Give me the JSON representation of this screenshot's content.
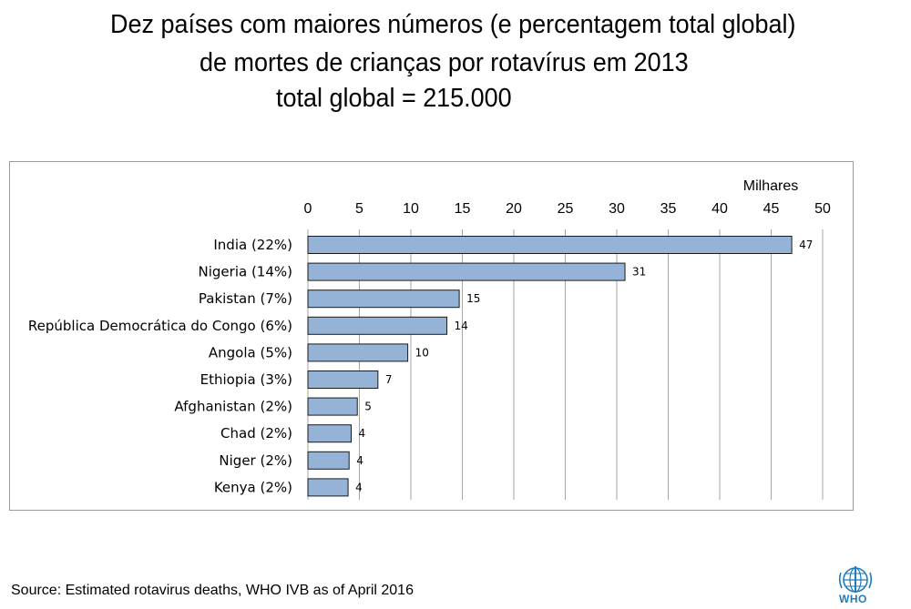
{
  "title": {
    "line1": "Dez países com maiores números (e percentagem total global)",
    "line2": "de mortes de crianças por rotavírus em 2013",
    "line3": "total global = 215.000"
  },
  "source": "Source: Estimated rotavirus  deaths, WHO IVB as of April 2016",
  "logo": {
    "text": "WHO",
    "icon": "who-emblem-icon",
    "color": "#1f7bbf"
  },
  "chart_data": {
    "type": "bar",
    "orientation": "horizontal",
    "axis_title": "Milhares",
    "xlim": [
      0,
      50
    ],
    "ticks": [
      0,
      5,
      10,
      15,
      20,
      25,
      30,
      35,
      40,
      45,
      50
    ],
    "axis_position": "top",
    "grid": true,
    "bar_color": "#95b3d7",
    "categories": [
      "India (22%)",
      "Nigeria (14%)",
      "Pakistan (7%)",
      "República Democrática do Congo (6%)",
      "Angola (5%)",
      "Ethiopia (3%)",
      "Afghanistan (2%)",
      "Chad (2%)",
      "Niger (2%)",
      "Kenya (2%)"
    ],
    "values": [
      47,
      31,
      15,
      14,
      10,
      7,
      5,
      4,
      4,
      4
    ],
    "value_labels": [
      "47",
      "31",
      "15",
      "14",
      "10",
      "7",
      "5",
      "4",
      "4",
      "4"
    ],
    "bar_extents": [
      47,
      30.8,
      14.7,
      13.5,
      9.7,
      6.8,
      4.8,
      4.2,
      4.0,
      3.9
    ]
  }
}
